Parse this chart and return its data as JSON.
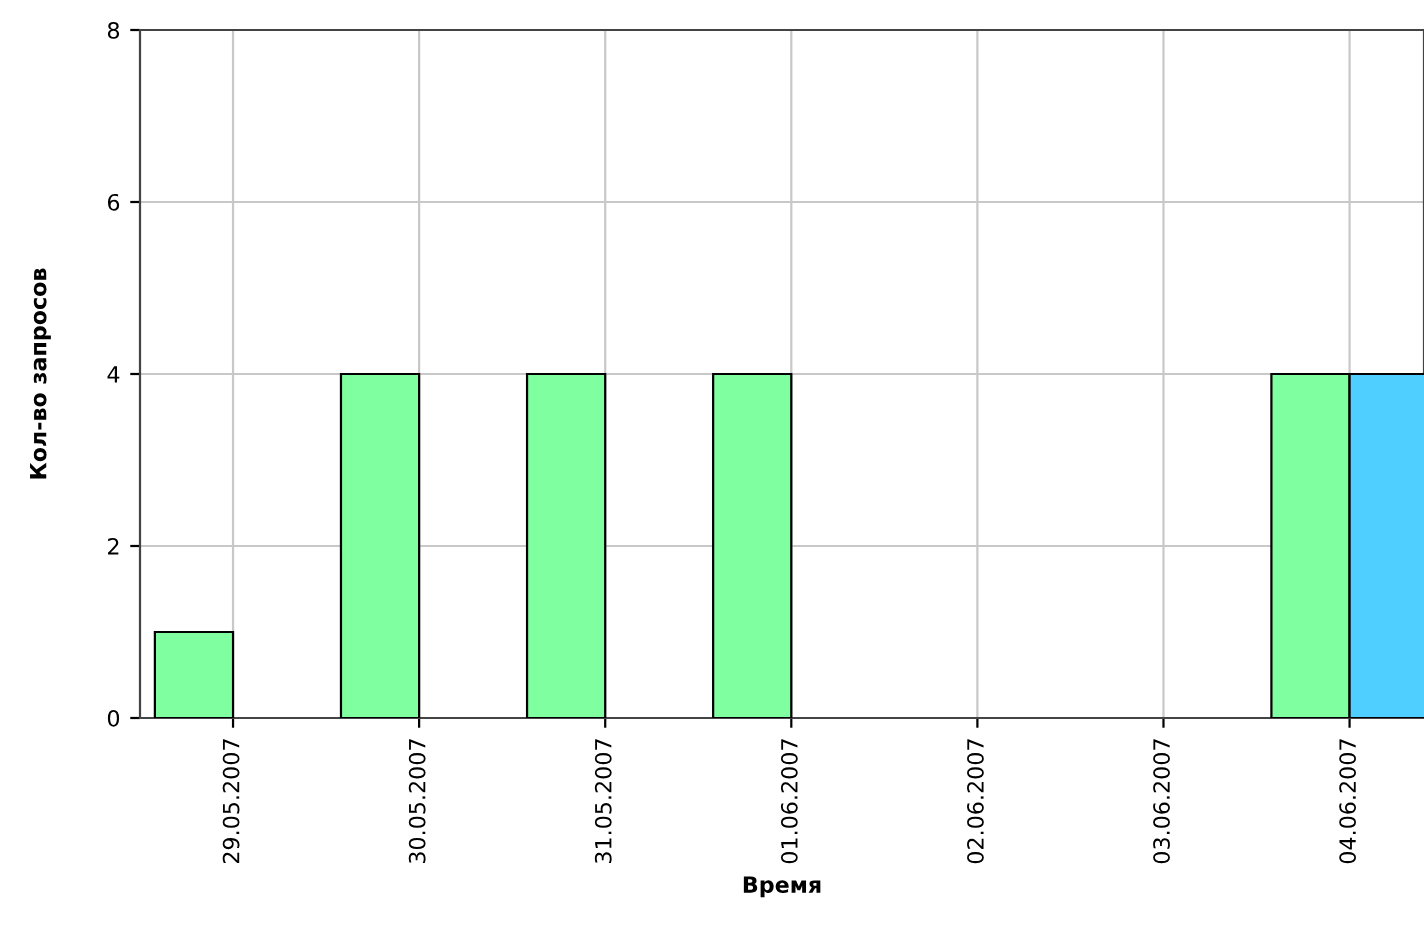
{
  "chart_data": {
    "type": "bar",
    "xlabel": "Время",
    "ylabel": "Кол-во запросов",
    "categories": [
      "29.05.2007",
      "30.05.2007",
      "31.05.2007",
      "01.06.2007",
      "02.06.2007",
      "03.06.2007",
      "04.06.2007"
    ],
    "series": [
      {
        "color": "#80ffa0",
        "values": [
          1,
          4,
          4,
          4,
          0,
          0,
          4
        ]
      },
      {
        "color": "#4fcfff",
        "values": [
          0,
          0,
          0,
          0,
          0,
          0,
          4
        ]
      }
    ],
    "ylim": [
      0,
      8
    ],
    "yticks": [
      0,
      2,
      4,
      6,
      8
    ],
    "grid": true,
    "legend": false
  }
}
